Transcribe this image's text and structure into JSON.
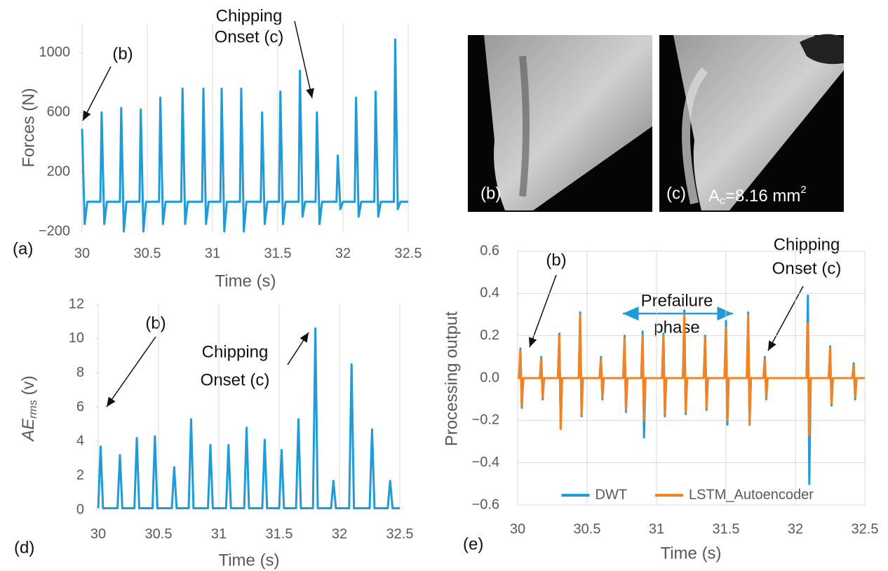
{
  "chart_data": [
    {
      "type": "line",
      "panel_label": "(a)",
      "y_title": "Forces (N)",
      "x_title": "Time (s)",
      "annotations": [
        "(b)",
        "Chipping",
        "Onset (c)"
      ],
      "xlim": [
        30,
        32.5
      ],
      "xticks": [
        30,
        30.5,
        31,
        31.5,
        32,
        32.5
      ],
      "ylim": [
        -200,
        1200
      ],
      "yticks": [
        {
          "value": -200,
          "label": "−200"
        },
        200,
        600,
        1000
      ],
      "grid": "x",
      "x": [
        30,
        30.02,
        30.04,
        30.14,
        30.15,
        30.17,
        30.19,
        30.29,
        30.3,
        30.32,
        30.34,
        30.44,
        30.45,
        30.47,
        30.49,
        30.59,
        30.6,
        30.62,
        30.64,
        30.76,
        30.77,
        30.79,
        30.81,
        30.92,
        30.93,
        30.95,
        30.97,
        31.06,
        31.07,
        31.09,
        31.11,
        31.21,
        31.22,
        31.24,
        31.26,
        31.37,
        31.38,
        31.4,
        31.42,
        31.51,
        31.52,
        31.54,
        31.56,
        31.66,
        31.67,
        31.69,
        31.71,
        31.79,
        31.8,
        31.82,
        31.84,
        31.95,
        31.96,
        31.98,
        32,
        32.09,
        32.1,
        32.12,
        32.14,
        32.24,
        32.25,
        32.27,
        32.29,
        32.39,
        32.4,
        32.42,
        32.44,
        32.5
      ],
      "series": [
        {
          "color": "#1f9bd7",
          "values": [
            490,
            -150,
            0,
            0,
            600,
            -150,
            0,
            0,
            630,
            -200,
            0,
            0,
            620,
            -200,
            0,
            0,
            700,
            -150,
            0,
            0,
            760,
            -150,
            0,
            0,
            760,
            -150,
            0,
            0,
            760,
            -200,
            0,
            0,
            760,
            -200,
            0,
            0,
            600,
            -150,
            0,
            0,
            740,
            -150,
            0,
            0,
            880,
            -100,
            0,
            0,
            600,
            -150,
            0,
            0,
            310,
            -50,
            0,
            0,
            700,
            -100,
            0,
            0,
            740,
            -100,
            0,
            0,
            1090,
            -50,
            0,
            0
          ]
        }
      ]
    },
    {
      "type": "line",
      "panel_label": "(d)",
      "y_title": {
        "main": "AE",
        "sub": "rms",
        "rest": " (v)"
      },
      "x_title": "Time (s)",
      "annotations": [
        "(b)",
        "Chipping",
        "Onset (c)"
      ],
      "xlim": [
        30,
        32.5
      ],
      "xticks": [
        30,
        30.5,
        31,
        31.5,
        32,
        32.5
      ],
      "ylim": [
        0,
        12
      ],
      "yticks": [
        0,
        2,
        4,
        6,
        8,
        10,
        12
      ],
      "grid": "x",
      "x": [
        30,
        30.02,
        30.04,
        30.16,
        30.18,
        30.2,
        30.3,
        30.32,
        30.34,
        30.45,
        30.47,
        30.49,
        30.61,
        30.63,
        30.65,
        30.75,
        30.77,
        30.79,
        30.91,
        30.93,
        30.95,
        31.06,
        31.08,
        31.1,
        31.21,
        31.23,
        31.25,
        31.36,
        31.38,
        31.4,
        31.5,
        31.52,
        31.54,
        31.64,
        31.66,
        31.68,
        31.78,
        31.8,
        31.82,
        31.93,
        31.95,
        31.97,
        32.08,
        32.1,
        32.12,
        32.25,
        32.27,
        32.29,
        32.4,
        32.42,
        32.44,
        32.5
      ],
      "series": [
        {
          "color": "#1f9bd7",
          "values": [
            0.1,
            3.7,
            0.1,
            0.1,
            3.2,
            0.1,
            0.1,
            4.2,
            0.1,
            0.1,
            4.3,
            0.1,
            0.1,
            2.5,
            0.1,
            0.1,
            5.3,
            0.1,
            0.1,
            3.8,
            0.1,
            0.1,
            3.8,
            0.1,
            0.1,
            4.8,
            0.1,
            0.1,
            4.1,
            0.1,
            0.1,
            3.5,
            0.1,
            0.1,
            5.3,
            0.1,
            0.1,
            10.6,
            0.1,
            0.1,
            1.7,
            0.1,
            0.1,
            8.5,
            0.1,
            0.1,
            4.7,
            0.1,
            0.1,
            1.7,
            0.1,
            0.1
          ]
        }
      ]
    },
    {
      "type": "line",
      "panel_label": "(e)",
      "y_title": "Processing output",
      "x_title": "Time (s)",
      "annotations": [
        "(b)",
        "Chipping",
        "Onset (c)",
        "Prefailure",
        "phase"
      ],
      "xlim": [
        30,
        32.5
      ],
      "xticks": [
        30,
        30.5,
        31,
        31.5,
        32,
        32.5
      ],
      "ylim": [
        -0.6,
        0.6
      ],
      "yticks": [
        {
          "value": -0.6,
          "label": "−0.6"
        },
        {
          "value": -0.4,
          "label": "−0.4"
        },
        {
          "value": -0.2,
          "label": "−0.2"
        },
        {
          "value": 0,
          "label": "0.0"
        },
        0.2,
        0.4,
        0.6
      ],
      "grid": "both",
      "legend": "lower center",
      "x": [
        30,
        30.01,
        30.02,
        30.03,
        30.04,
        30.16,
        30.17,
        30.18,
        30.19,
        30.29,
        30.3,
        30.31,
        30.32,
        30.44,
        30.45,
        30.46,
        30.47,
        30.59,
        30.6,
        30.61,
        30.62,
        30.76,
        30.77,
        30.78,
        30.79,
        30.89,
        30.9,
        30.91,
        30.92,
        31.04,
        31.05,
        31.06,
        31.07,
        31.19,
        31.2,
        31.21,
        31.22,
        31.34,
        31.35,
        31.36,
        31.37,
        31.49,
        31.5,
        31.51,
        31.52,
        31.65,
        31.66,
        31.67,
        31.68,
        31.77,
        31.78,
        31.79,
        31.8,
        32.08,
        32.09,
        32.1,
        32.11,
        32.24,
        32.25,
        32.26,
        32.27,
        32.41,
        32.42,
        32.43,
        32.44,
        32.5
      ],
      "series": [
        {
          "name": "DWT",
          "color": "#1f9bd7",
          "values": [
            0,
            0,
            0.14,
            -0.14,
            0,
            0,
            0.1,
            -0.1,
            0,
            0,
            0.21,
            -0.24,
            0,
            0,
            0.31,
            -0.18,
            0,
            0,
            0.1,
            -0.1,
            0,
            0,
            0.2,
            -0.16,
            0,
            0,
            0.22,
            -0.28,
            0,
            0,
            0.21,
            -0.18,
            0,
            0,
            0.32,
            -0.17,
            0,
            0,
            0.2,
            -0.15,
            0,
            0,
            0.27,
            -0.22,
            0,
            0,
            0.31,
            -0.22,
            0,
            0,
            0.1,
            -0.1,
            0,
            0,
            0.39,
            -0.5,
            0,
            0,
            0.15,
            -0.13,
            0,
            0,
            0.07,
            -0.1,
            0,
            0
          ]
        },
        {
          "name": "LSTM_Autoencoder",
          "color": "#f58220",
          "values": [
            0,
            0,
            0.13,
            -0.13,
            0,
            0,
            0.09,
            -0.09,
            0,
            0,
            0.2,
            -0.24,
            0,
            0,
            0.3,
            -0.17,
            0,
            0,
            0.09,
            -0.09,
            0,
            0,
            0.19,
            -0.15,
            0,
            0,
            0.2,
            -0.2,
            0,
            0,
            0.2,
            -0.17,
            0,
            0,
            0.3,
            -0.16,
            0,
            0,
            0.19,
            -0.14,
            0,
            0,
            0.24,
            -0.2,
            0,
            0,
            0.3,
            -0.22,
            0,
            0,
            0.09,
            -0.09,
            0,
            0,
            0.26,
            -0.27,
            0,
            0,
            0.14,
            -0.12,
            0,
            0,
            0.06,
            -0.09,
            0,
            0
          ]
        }
      ]
    }
  ],
  "images": [
    {
      "label": "(b)"
    },
    {
      "label": "(c)",
      "caption": {
        "main": "A",
        "sub": "c",
        "rest": "=8.16 mm",
        "sup": "2"
      }
    }
  ]
}
